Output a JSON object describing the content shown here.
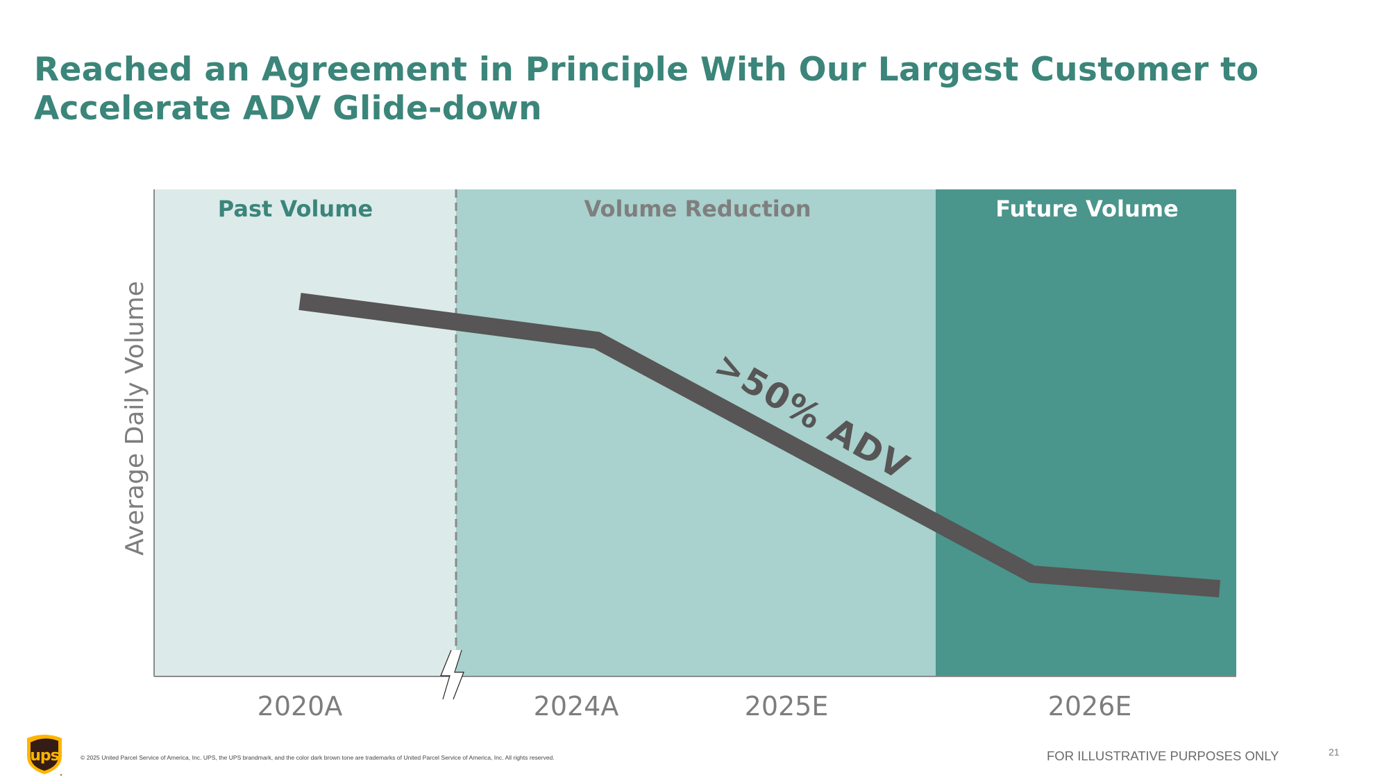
{
  "slide": {
    "title_lines": [
      "Reached an Agreement in Principle With Our Largest Customer to",
      "Accelerate ADV Glide-down"
    ],
    "page_number": "21",
    "disclaimer": "FOR ILLUSTRATIVE PURPOSES ONLY",
    "copyright": "© 2025 United Parcel Service of America, Inc. UPS, the UPS brandmark, and the color dark brown tone are trademarks of United Parcel Service of America, Inc. All rights reserved.",
    "logo": {
      "icon": "ups-shield-logo",
      "text": "ups",
      "colors": {
        "shield": "#351c15",
        "accent": "#ffb500"
      }
    }
  },
  "colors": {
    "title": "#3b857a",
    "band_past": "#ddeaea",
    "band_reduction": "#a9d1cd",
    "band_future": "#4a958c",
    "line": "#575555",
    "axis": "#8a8a8a",
    "tick_label": "#7d7d7d",
    "header_past": "#3b857a",
    "header_reduction": "#7f7f7f",
    "header_future": "#ffffff"
  },
  "chart_data": {
    "type": "line",
    "title": "",
    "xlabel": "",
    "ylabel": "Average Daily Volume",
    "illustrative": true,
    "categories": [
      "2020A",
      "2024A",
      "2025E",
      "2026E"
    ],
    "axis_break_after": "2020A",
    "grid": false,
    "ylim": [
      0,
      100
    ],
    "bands": [
      {
        "label": "Past Volume",
        "from": "start",
        "to": "2024A-boundary"
      },
      {
        "label": "Volume Reduction",
        "from": "2024A-boundary",
        "to": "2026E-boundary"
      },
      {
        "label": "Future Volume",
        "from": "2026E-boundary",
        "to": "end"
      }
    ],
    "series": [
      {
        "name": "Average Daily Volume (illustrative)",
        "points": [
          {
            "x": "2020A",
            "y": 77
          },
          {
            "x": "2024A",
            "y": 69
          },
          {
            "x": "2026E",
            "y": 21
          },
          {
            "x": "end",
            "y": 18
          }
        ]
      }
    ],
    "annotations": [
      {
        "text": ">50% ADV",
        "rotation_deg": 30,
        "near": "2025E"
      }
    ]
  }
}
